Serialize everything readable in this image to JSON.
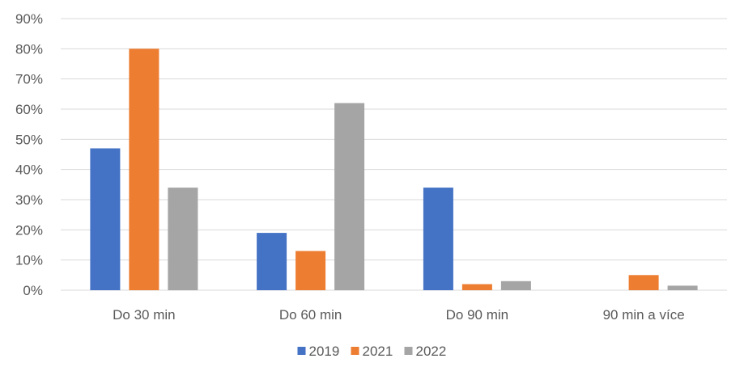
{
  "chart_data": {
    "type": "bar",
    "categories": [
      "Do 30 min",
      "Do 60 min",
      "Do 90 min",
      "90 min a více"
    ],
    "series": [
      {
        "name": "2019",
        "color": "#4472c4",
        "values": [
          47,
          19,
          34,
          0
        ]
      },
      {
        "name": "2021",
        "color": "#ed7d31",
        "values": [
          80,
          13,
          2,
          5
        ]
      },
      {
        "name": "2022",
        "color": "#a5a5a5",
        "values": [
          34,
          62,
          3,
          1.5
        ]
      }
    ],
    "ylim": [
      0,
      90
    ],
    "ytick_step": 10,
    "y_tick_labels": [
      "0%",
      "10%",
      "20%",
      "30%",
      "40%",
      "50%",
      "60%",
      "70%",
      "80%",
      "90%"
    ],
    "grid": true,
    "legend": "bottom"
  }
}
